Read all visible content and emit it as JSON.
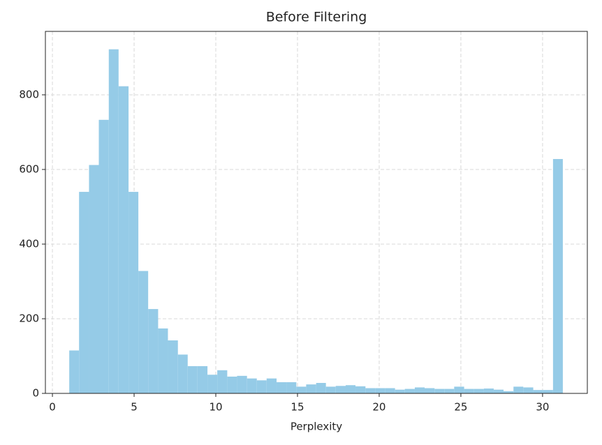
{
  "chart_data": {
    "type": "histogram",
    "title": "Before Filtering",
    "x_label": "Perplexity",
    "bins": [
      1.03,
      1.63,
      2.24,
      2.84,
      3.45,
      4.05,
      4.66,
      5.26,
      5.86,
      6.47,
      7.07,
      7.68,
      8.28,
      8.88,
      9.49,
      10.09,
      10.7,
      11.3,
      11.91,
      12.51,
      13.11,
      13.72,
      14.32,
      14.93,
      15.53,
      16.14,
      16.74,
      17.34,
      17.95,
      18.55,
      19.16,
      19.76,
      20.36,
      20.97,
      21.57,
      22.18,
      22.78,
      23.39,
      23.99,
      24.59,
      25.2,
      25.8,
      26.41,
      27.01,
      27.61,
      28.22,
      28.82,
      29.43,
      30.03,
      30.64,
      31.24
    ],
    "values": [
      115,
      540,
      612,
      733,
      922,
      823,
      540,
      328,
      226,
      174,
      142,
      104,
      73,
      73,
      50,
      62,
      45,
      47,
      40,
      35,
      40,
      30,
      30,
      18,
      24,
      28,
      18,
      20,
      22,
      19,
      14,
      14,
      14,
      10,
      12,
      16,
      14,
      12,
      12,
      18,
      12,
      12,
      13,
      10,
      6,
      18,
      16,
      9,
      9,
      628
    ],
    "color": "#95cbe7",
    "xlim": [
      -0.43,
      32.74
    ],
    "ylim": [
      0,
      970
    ],
    "xticks": [
      0,
      5,
      10,
      15,
      20,
      25,
      30
    ],
    "yticks": [
      0,
      200,
      400,
      600,
      800
    ],
    "grid": true
  }
}
